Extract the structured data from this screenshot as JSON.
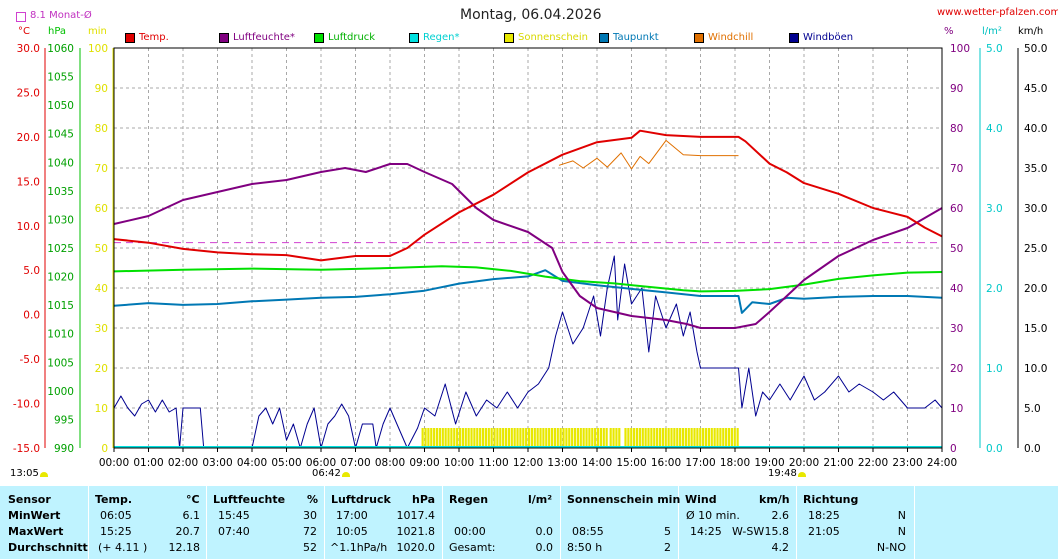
{
  "page": {
    "title": "Montag, 06.04.2026",
    "site": "www.wetter-pfalzen.com",
    "avg_label": "8.1 Monat-Ø",
    "unit_temp": "°C",
    "unit_hpa": "hPa",
    "unit_min": "min",
    "unit_percent": "%",
    "unit_rain": "l/m²",
    "unit_kmh": "km/h",
    "sunrise": "06:42",
    "sunset": "19:48",
    "left_time": "13:05"
  },
  "colors": {
    "temp": "#e00000",
    "humidity": "#800080",
    "pressure": "#00e000",
    "rain": "#00e0e0",
    "sunshine": "#e8e800",
    "dewpoint": "#0078b4",
    "windchill": "#e07000",
    "gusts": "#000090",
    "table_bg": "#bff3ff"
  },
  "chart_data": {
    "type": "line",
    "title": "Montag, 06.04.2026",
    "x_ticks": [
      "00:00",
      "01:00",
      "02:00",
      "03:00",
      "04:00",
      "05:00",
      "06:00",
      "07:00",
      "08:00",
      "09:00",
      "10:00",
      "11:00",
      "12:00",
      "13:00",
      "14:00",
      "15:00",
      "16:00",
      "17:00",
      "18:00",
      "19:00",
      "20:00",
      "21:00",
      "22:00",
      "23:00",
      "24:00"
    ],
    "xlim_hours": [
      0,
      24
    ],
    "axes": {
      "temp": {
        "label": "°C",
        "range": [
          -15,
          30
        ],
        "ticks": [
          "30.0",
          "25.0",
          "20.0",
          "15.0",
          "10.0",
          "5.0",
          "0.0",
          "-5.0",
          "-10.0",
          "-15.0"
        ]
      },
      "pressure": {
        "label": "hPa",
        "range": [
          990,
          1060
        ],
        "ticks": [
          "1060",
          "1055",
          "1050",
          "1045",
          "1040",
          "1035",
          "1030",
          "1025",
          "1020",
          "1015",
          "1010",
          "1005",
          "1000",
          "995",
          "990"
        ]
      },
      "sunshine": {
        "label": "min",
        "range": [
          0,
          100
        ],
        "ticks": [
          "100",
          "90",
          "80",
          "70",
          "60",
          "50",
          "40",
          "30",
          "20",
          "10",
          "0"
        ]
      },
      "humidity": {
        "label": "%",
        "range": [
          0,
          100
        ],
        "ticks": [
          "100",
          "90",
          "80",
          "70",
          "60",
          "50",
          "40",
          "30",
          "20",
          "10",
          "0"
        ]
      },
      "rain": {
        "label": "l/m²",
        "range": [
          0,
          5
        ],
        "ticks": [
          "5.0",
          "4.0",
          "3.0",
          "2.0",
          "1.0",
          "0.0"
        ]
      },
      "wind": {
        "label": "km/h",
        "range": [
          0,
          50
        ],
        "ticks": [
          "50.0",
          "45.0",
          "40.0",
          "35.0",
          "30.0",
          "25.0",
          "20.0",
          "15.0",
          "10.0",
          "5.0",
          "0.0"
        ]
      }
    },
    "monthly_avg_temp": 8.1,
    "legend": [
      "Temp.",
      "Luftfeuchte*",
      "Luftdruck",
      "Regen*",
      "Sonnenschein",
      "Taupunkt",
      "Windchill",
      "Windböen"
    ],
    "series": [
      {
        "name": "Temp.",
        "axis": "temp",
        "color": "#e00000",
        "points": [
          [
            0,
            8.5
          ],
          [
            1,
            8.1
          ],
          [
            2,
            7.4
          ],
          [
            3,
            7.0
          ],
          [
            4,
            6.8
          ],
          [
            5,
            6.7
          ],
          [
            6,
            6.1
          ],
          [
            7,
            6.6
          ],
          [
            8,
            6.6
          ],
          [
            8.5,
            7.5
          ],
          [
            9,
            9.0
          ],
          [
            10,
            11.5
          ],
          [
            11,
            13.5
          ],
          [
            12,
            16.0
          ],
          [
            13,
            18.0
          ],
          [
            14,
            19.4
          ],
          [
            15,
            19.9
          ],
          [
            15.25,
            20.7
          ],
          [
            16,
            20.2
          ],
          [
            17,
            20.0
          ],
          [
            18.1,
            20.0
          ],
          [
            18.3,
            19.5
          ],
          [
            19,
            17.0
          ],
          [
            19.5,
            16.0
          ],
          [
            20,
            14.8
          ],
          [
            21,
            13.6
          ],
          [
            22,
            12.0
          ],
          [
            23,
            11.0
          ],
          [
            23.5,
            9.8
          ],
          [
            24,
            8.8
          ]
        ]
      },
      {
        "name": "Windchill",
        "axis": "temp",
        "color": "#e07000",
        "points": [
          [
            12.9,
            16.8
          ],
          [
            13.3,
            17.3
          ],
          [
            13.6,
            16.5
          ],
          [
            14,
            17.6
          ],
          [
            14.3,
            16.6
          ],
          [
            14.7,
            18.2
          ],
          [
            15,
            16.4
          ],
          [
            15.25,
            17.8
          ],
          [
            15.5,
            17.0
          ],
          [
            16,
            19.6
          ],
          [
            16.5,
            18.0
          ],
          [
            17,
            17.9
          ],
          [
            18.1,
            17.9
          ]
        ]
      },
      {
        "name": "Luftfeuchte*",
        "axis": "humidity",
        "color": "#800080",
        "points": [
          [
            0,
            56
          ],
          [
            1,
            58
          ],
          [
            2,
            62
          ],
          [
            3,
            64
          ],
          [
            4,
            66
          ],
          [
            5,
            67
          ],
          [
            6,
            69
          ],
          [
            6.7,
            70
          ],
          [
            7.3,
            69
          ],
          [
            8,
            71
          ],
          [
            8.5,
            71
          ],
          [
            9,
            69
          ],
          [
            9.8,
            66
          ],
          [
            10.5,
            60
          ],
          [
            11,
            57
          ],
          [
            12,
            54
          ],
          [
            12.7,
            50
          ],
          [
            13,
            44
          ],
          [
            13.5,
            38
          ],
          [
            14,
            35
          ],
          [
            15,
            33
          ],
          [
            16,
            32
          ],
          [
            16.6,
            31
          ],
          [
            17,
            30
          ],
          [
            18,
            30
          ],
          [
            18.6,
            31
          ],
          [
            19,
            34
          ],
          [
            19.5,
            38
          ],
          [
            20,
            42
          ],
          [
            21,
            48
          ],
          [
            22,
            52
          ],
          [
            23,
            55
          ],
          [
            24,
            60
          ]
        ]
      },
      {
        "name": "Luftdruck",
        "axis": "pressure",
        "color": "#00e000",
        "points": [
          [
            0,
            1020.9
          ],
          [
            2,
            1021.2
          ],
          [
            4,
            1021.4
          ],
          [
            6,
            1021.2
          ],
          [
            8,
            1021.5
          ],
          [
            9.5,
            1021.8
          ],
          [
            10.5,
            1021.6
          ],
          [
            11.5,
            1021.0
          ],
          [
            12.5,
            1020.0
          ],
          [
            13.5,
            1019.2
          ],
          [
            14.5,
            1018.8
          ],
          [
            15.5,
            1018.2
          ],
          [
            16.5,
            1017.6
          ],
          [
            17,
            1017.4
          ],
          [
            18,
            1017.5
          ],
          [
            19,
            1017.8
          ],
          [
            20,
            1018.6
          ],
          [
            21,
            1019.6
          ],
          [
            22,
            1020.2
          ],
          [
            23,
            1020.7
          ],
          [
            24,
            1020.8
          ]
        ]
      },
      {
        "name": "Taupunkt",
        "axis": "temp",
        "color": "#0078b4",
        "points": [
          [
            0,
            1.0
          ],
          [
            1,
            1.3
          ],
          [
            2,
            1.1
          ],
          [
            3,
            1.2
          ],
          [
            4,
            1.5
          ],
          [
            5,
            1.7
          ],
          [
            6,
            1.9
          ],
          [
            7,
            2.0
          ],
          [
            8,
            2.3
          ],
          [
            9,
            2.7
          ],
          [
            10,
            3.5
          ],
          [
            11,
            4.0
          ],
          [
            12,
            4.3
          ],
          [
            12.5,
            5.0
          ],
          [
            13,
            3.8
          ],
          [
            14,
            3.3
          ],
          [
            15,
            2.9
          ],
          [
            16,
            2.5
          ],
          [
            17,
            2.1
          ],
          [
            18.1,
            2.1
          ],
          [
            18.2,
            0.2
          ],
          [
            18.5,
            1.4
          ],
          [
            19,
            1.2
          ],
          [
            19.5,
            1.9
          ],
          [
            20,
            1.8
          ],
          [
            21,
            2.0
          ],
          [
            22,
            2.1
          ],
          [
            23,
            2.1
          ],
          [
            24,
            1.9
          ]
        ]
      },
      {
        "name": "Windböen",
        "axis": "wind",
        "color": "#000090",
        "points": [
          [
            0,
            5
          ],
          [
            0.2,
            6.5
          ],
          [
            0.4,
            5
          ],
          [
            0.6,
            4
          ],
          [
            0.8,
            5.5
          ],
          [
            1,
            6
          ],
          [
            1.2,
            4.5
          ],
          [
            1.4,
            6
          ],
          [
            1.6,
            4.5
          ],
          [
            1.8,
            5
          ],
          [
            1.9,
            0
          ],
          [
            2,
            5
          ],
          [
            2.5,
            5
          ],
          [
            2.6,
            0
          ],
          [
            3,
            0
          ],
          [
            3.5,
            0
          ],
          [
            4,
            0
          ],
          [
            4.2,
            4
          ],
          [
            4.4,
            5
          ],
          [
            4.6,
            3
          ],
          [
            4.8,
            5
          ],
          [
            5,
            1
          ],
          [
            5.2,
            3
          ],
          [
            5.4,
            0
          ],
          [
            5.6,
            3
          ],
          [
            5.8,
            5
          ],
          [
            6,
            0
          ],
          [
            6.2,
            3
          ],
          [
            6.4,
            4
          ],
          [
            6.6,
            5.5
          ],
          [
            6.8,
            4
          ],
          [
            7,
            0
          ],
          [
            7.2,
            3
          ],
          [
            7.5,
            3
          ],
          [
            7.6,
            0
          ],
          [
            7.8,
            3
          ],
          [
            8,
            5
          ],
          [
            8.2,
            3
          ],
          [
            8.5,
            0
          ],
          [
            8.8,
            2.5
          ],
          [
            9,
            5
          ],
          [
            9.3,
            4
          ],
          [
            9.6,
            8
          ],
          [
            9.9,
            3
          ],
          [
            10.2,
            7
          ],
          [
            10.5,
            4
          ],
          [
            10.8,
            6
          ],
          [
            11.1,
            5
          ],
          [
            11.4,
            7
          ],
          [
            11.7,
            5
          ],
          [
            12,
            7
          ],
          [
            12.3,
            8
          ],
          [
            12.6,
            10
          ],
          [
            12.8,
            14
          ],
          [
            13,
            17
          ],
          [
            13.3,
            13
          ],
          [
            13.6,
            15
          ],
          [
            13.9,
            19
          ],
          [
            14.1,
            14
          ],
          [
            14.3,
            20
          ],
          [
            14.5,
            24
          ],
          [
            14.6,
            16
          ],
          [
            14.8,
            23
          ],
          [
            15,
            18
          ],
          [
            15.3,
            20
          ],
          [
            15.5,
            12
          ],
          [
            15.7,
            19
          ],
          [
            16,
            15
          ],
          [
            16.3,
            18
          ],
          [
            16.5,
            14
          ],
          [
            16.7,
            17
          ],
          [
            16.9,
            12
          ],
          [
            17,
            10
          ],
          [
            18.1,
            10
          ],
          [
            18.2,
            5
          ],
          [
            18.4,
            10
          ],
          [
            18.6,
            4
          ],
          [
            18.8,
            7
          ],
          [
            19,
            6
          ],
          [
            19.3,
            8
          ],
          [
            19.6,
            6
          ],
          [
            20,
            9
          ],
          [
            20.3,
            6
          ],
          [
            20.6,
            7
          ],
          [
            21,
            9
          ],
          [
            21.3,
            7
          ],
          [
            21.6,
            8
          ],
          [
            22,
            7
          ],
          [
            22.3,
            6
          ],
          [
            22.6,
            7
          ],
          [
            23,
            5
          ],
          [
            23.5,
            5
          ],
          [
            23.8,
            6
          ],
          [
            24,
            5
          ]
        ]
      }
    ],
    "sunshine_intervals": [
      [
        8.9,
        14.25
      ],
      [
        14.35,
        14.62
      ],
      [
        14.78,
        18.1
      ]
    ]
  },
  "table": {
    "headers": {
      "sensor": "Sensor",
      "temp": "Temp.",
      "temp_unit": "°C",
      "hum": "Luftfeuchte",
      "hum_unit": "%",
      "press": "Luftdruck",
      "press_unit": "hPa",
      "rain": "Regen",
      "rain_unit": "l/m²",
      "sun": "Sonnenschein min",
      "wind": "Wind",
      "wind_unit": "km/h",
      "dir": "Richtung"
    },
    "rows": [
      {
        "label": "MinWert",
        "temp_time": "06:05",
        "temp_val": "6.1",
        "hum_time": "15:45",
        "hum_val": "30",
        "press_time": "17:00",
        "press_val": "1017.4",
        "rain_time": "",
        "rain_val": "",
        "sun_time": "",
        "sun_val": "",
        "wind_time": "Ø 10 min.",
        "wind_dir": "",
        "wind_val": "2.6",
        "dir_time": "18:25",
        "dir_val": "N"
      },
      {
        "label": "MaxWert",
        "temp_time": "15:25",
        "temp_val": "20.7",
        "hum_time": "07:40",
        "hum_val": "72",
        "press_time": "10:05",
        "press_val": "1021.8",
        "rain_time": "00:00",
        "rain_val": "0.0",
        "sun_time": "08:55",
        "sun_val": "5",
        "wind_time": "14:25",
        "wind_dir": "W-SW",
        "wind_val": "15.8",
        "dir_time": "21:05",
        "dir_val": "N"
      },
      {
        "label": "Durchschnitt",
        "temp_time": "(+ 4.11 )",
        "temp_val": "12.18",
        "hum_time": "",
        "hum_val": "52",
        "press_time": "^1.1hPa/h",
        "press_val": "1020.0",
        "rain_time": "Gesamt:",
        "rain_val": "0.0",
        "sun_time": "8:50 h",
        "sun_val": "2",
        "wind_time": "",
        "wind_dir": "",
        "wind_val": "4.2",
        "dir_time": "",
        "dir_val": "N-NO"
      }
    ]
  }
}
